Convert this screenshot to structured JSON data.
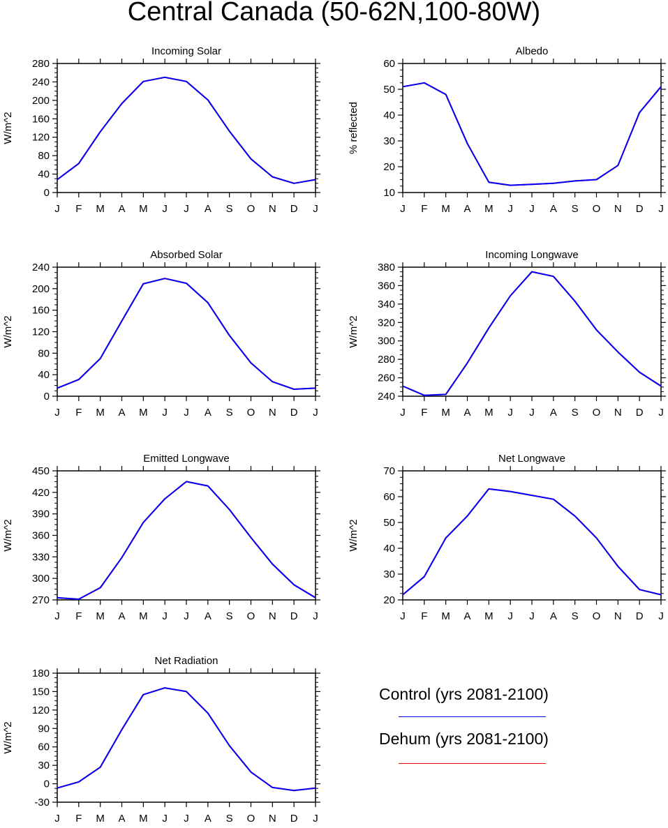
{
  "figure": {
    "title": "Central Canada (50-62N,100-80W)"
  },
  "chart_data": [
    {
      "type": "line",
      "title": "Incoming Solar",
      "xlabel": "",
      "ylabel": "W/m^2",
      "x": [
        "J",
        "F",
        "M",
        "A",
        "M",
        "J",
        "J",
        "A",
        "S",
        "O",
        "N",
        "D",
        "J"
      ],
      "yticks": [
        "0",
        "40",
        "80",
        "120",
        "160",
        "200",
        "240",
        "280"
      ],
      "ylim": [
        0,
        280
      ],
      "series": [
        {
          "name": "Control (yrs 2081-2100)",
          "color": "#0000ff",
          "values": [
            28,
            63,
            132,
            193,
            241,
            250,
            241,
            201,
            133,
            73,
            34,
            20,
            28
          ]
        },
        {
          "name": "Dehum (yrs 2081-2100)",
          "color": "#ff0000",
          "values": [
            28,
            63,
            132,
            193,
            241,
            250,
            241,
            201,
            133,
            73,
            34,
            20,
            28
          ]
        }
      ]
    },
    {
      "type": "line",
      "title": "Albedo",
      "xlabel": "",
      "ylabel": "% reflected",
      "x": [
        "J",
        "F",
        "M",
        "A",
        "M",
        "J",
        "J",
        "A",
        "S",
        "O",
        "N",
        "D",
        "J"
      ],
      "yticks": [
        "10",
        "20",
        "30",
        "40",
        "50",
        "60"
      ],
      "ylim": [
        10,
        60
      ],
      "series": [
        {
          "name": "Control (yrs 2081-2100)",
          "color": "#0000ff",
          "values": [
            51,
            52.5,
            48,
            29,
            14,
            12.8,
            13.2,
            13.6,
            14.5,
            15,
            20.5,
            41,
            51
          ]
        },
        {
          "name": "Dehum (yrs 2081-2100)",
          "color": "#ff0000",
          "values": [
            51,
            52.5,
            48,
            29,
            14,
            12.8,
            13.2,
            13.6,
            14.5,
            15,
            20.5,
            41,
            51
          ]
        }
      ]
    },
    {
      "type": "line",
      "title": "Absorbed Solar",
      "xlabel": "",
      "ylabel": "W/m^2",
      "x": [
        "J",
        "F",
        "M",
        "A",
        "M",
        "J",
        "J",
        "A",
        "S",
        "O",
        "N",
        "D",
        "J"
      ],
      "yticks": [
        "0",
        "40",
        "80",
        "120",
        "160",
        "200",
        "240"
      ],
      "ylim": [
        0,
        240
      ],
      "series": [
        {
          "name": "Control (yrs 2081-2100)",
          "color": "#0000ff",
          "values": [
            15,
            31,
            70,
            140,
            209,
            219,
            210,
            174,
            113,
            62,
            27,
            13,
            15
          ]
        },
        {
          "name": "Dehum (yrs 2081-2100)",
          "color": "#ff0000",
          "values": [
            15,
            31,
            70,
            140,
            209,
            219,
            210,
            174,
            113,
            62,
            27,
            13,
            15
          ]
        }
      ]
    },
    {
      "type": "line",
      "title": "Incoming Longwave",
      "xlabel": "",
      "ylabel": "W/m^2",
      "x": [
        "J",
        "F",
        "M",
        "A",
        "M",
        "J",
        "J",
        "A",
        "S",
        "O",
        "N",
        "D",
        "J"
      ],
      "yticks": [
        "240",
        "260",
        "280",
        "300",
        "320",
        "340",
        "360",
        "380"
      ],
      "ylim": [
        240,
        380
      ],
      "series": [
        {
          "name": "Control (yrs 2081-2100)",
          "color": "#0000ff",
          "values": [
            251,
            241,
            242,
            276,
            314,
            349,
            375,
            370,
            343,
            312,
            288,
            266,
            251
          ]
        },
        {
          "name": "Dehum (yrs 2081-2100)",
          "color": "#ff0000",
          "values": [
            251,
            241,
            242,
            276,
            314,
            349,
            375,
            370,
            343,
            312,
            288,
            266,
            251
          ]
        }
      ]
    },
    {
      "type": "line",
      "title": "Emitted Longwave",
      "xlabel": "",
      "ylabel": "W/m^2",
      "x": [
        "J",
        "F",
        "M",
        "A",
        "M",
        "J",
        "J",
        "A",
        "S",
        "O",
        "N",
        "D",
        "J"
      ],
      "yticks": [
        "270",
        "300",
        "330",
        "360",
        "390",
        "420",
        "450"
      ],
      "ylim": [
        270,
        450
      ],
      "series": [
        {
          "name": "Control (yrs 2081-2100)",
          "color": "#0000ff",
          "values": [
            273,
            271,
            287,
            329,
            378,
            411,
            435,
            429,
            396,
            357,
            320,
            291,
            273
          ]
        },
        {
          "name": "Dehum (yrs 2081-2100)",
          "color": "#ff0000",
          "values": [
            273,
            271,
            287,
            329,
            378,
            411,
            435,
            429,
            396,
            357,
            320,
            291,
            273
          ]
        }
      ]
    },
    {
      "type": "line",
      "title": "Net Longwave",
      "xlabel": "",
      "ylabel": "W/m^2",
      "x": [
        "J",
        "F",
        "M",
        "A",
        "M",
        "J",
        "J",
        "A",
        "S",
        "O",
        "N",
        "D",
        "J"
      ],
      "yticks": [
        "20",
        "30",
        "40",
        "50",
        "60",
        "70"
      ],
      "ylim": [
        20,
        70
      ],
      "series": [
        {
          "name": "Control (yrs 2081-2100)",
          "color": "#0000ff",
          "values": [
            22,
            29,
            44,
            52.5,
            63,
            62,
            60.5,
            59,
            52.5,
            44,
            33,
            24,
            22
          ]
        },
        {
          "name": "Dehum (yrs 2081-2100)",
          "color": "#ff0000",
          "values": [
            22,
            29,
            44,
            52.5,
            63,
            62,
            60.5,
            59,
            52.5,
            44,
            33,
            24,
            22
          ]
        }
      ]
    },
    {
      "type": "line",
      "title": "Net Radiation",
      "xlabel": "",
      "ylabel": "W/m^2",
      "x": [
        "J",
        "F",
        "M",
        "A",
        "M",
        "J",
        "J",
        "A",
        "S",
        "O",
        "N",
        "D",
        "J"
      ],
      "yticks": [
        "-30",
        "0",
        "30",
        "60",
        "90",
        "120",
        "150",
        "180"
      ],
      "ylim": [
        -30,
        180
      ],
      "series": [
        {
          "name": "Control (yrs 2081-2100)",
          "color": "#0000ff",
          "values": [
            -7,
            3,
            27,
            88,
            145,
            156,
            150,
            115,
            62,
            19,
            -6,
            -11,
            -7
          ]
        },
        {
          "name": "Dehum (yrs 2081-2100)",
          "color": "#ff0000",
          "values": [
            -7,
            3,
            27,
            88,
            145,
            156,
            150,
            115,
            62,
            19,
            -6,
            -11,
            -7
          ]
        }
      ]
    }
  ],
  "legend": {
    "entries": [
      {
        "label": "Control (yrs 2081-2100)",
        "color": "#0000ff"
      },
      {
        "label": "Dehum (yrs 2081-2100)",
        "color": "#ff0000"
      }
    ]
  }
}
